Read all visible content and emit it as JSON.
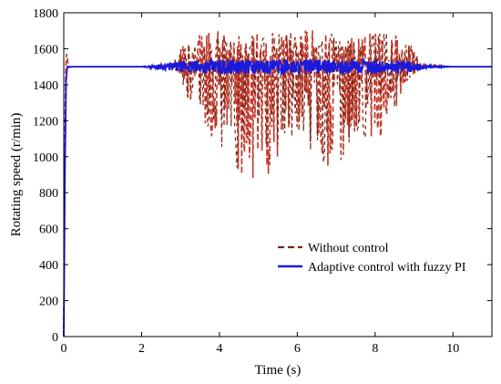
{
  "chart_data": {
    "type": "line",
    "title": "",
    "xlabel": "Time (s)",
    "ylabel": "Rotating speed (r/min)",
    "xlim": [
      0,
      11
    ],
    "ylim": [
      0,
      1800
    ],
    "xticks": [
      "0",
      "2",
      "4",
      "6",
      "8",
      "10"
    ],
    "yticks": [
      "0",
      "200",
      "400",
      "600",
      "800",
      "1000",
      "1200",
      "1400",
      "1600",
      "1800"
    ],
    "grid": false,
    "legend_position": "bottom-right",
    "colors": {
      "without_control": "#c0392b",
      "with_control": "#1a1adb",
      "dash_dark": "#7b2412"
    },
    "series": [
      {
        "name": "Without control",
        "style": "dashed",
        "x": [
          0,
          0.03,
          0.06,
          0.09,
          0.12,
          0.2,
          1.0,
          2.0,
          2.8,
          3.0,
          3.2,
          3.5,
          4.0,
          4.5,
          5.0,
          5.5,
          6.0,
          6.5,
          7.0,
          7.5,
          8.0,
          8.5,
          9.0,
          9.2,
          10,
          11
        ],
        "y": [
          0,
          1200,
          1580,
          1560,
          1495,
          1500,
          1500,
          1500,
          1500,
          1450,
          1300,
          1200,
          1050,
          900,
          820,
          980,
          1100,
          1000,
          900,
          1150,
          1050,
          1250,
          1450,
          1500,
          1500,
          1500
        ],
        "band_upper": [
          1500,
          1500,
          1500,
          1500,
          1500,
          1500,
          1500,
          1500,
          1520,
          1600,
          1650,
          1690,
          1700,
          1680,
          1690,
          1700,
          1710,
          1700,
          1690,
          1680,
          1700,
          1690,
          1600,
          1520,
          1500,
          1500
        ]
      },
      {
        "name": "Adaptive control with fuzzy PI",
        "style": "solid",
        "x": [
          0,
          0.03,
          0.06,
          0.09,
          0.15,
          1.0,
          2.0,
          3.0,
          4.0,
          5.0,
          6.0,
          7.0,
          8.0,
          9.0,
          9.3,
          10,
          11
        ],
        "y": [
          0,
          900,
          1420,
          1500,
          1500,
          1500,
          1500,
          1500,
          1500,
          1500,
          1500,
          1500,
          1500,
          1500,
          1500,
          1500,
          1500
        ],
        "band": [
          0,
          0,
          0,
          0,
          0,
          0,
          0,
          30,
          40,
          40,
          40,
          40,
          40,
          30,
          10,
          0,
          0
        ]
      }
    ]
  }
}
